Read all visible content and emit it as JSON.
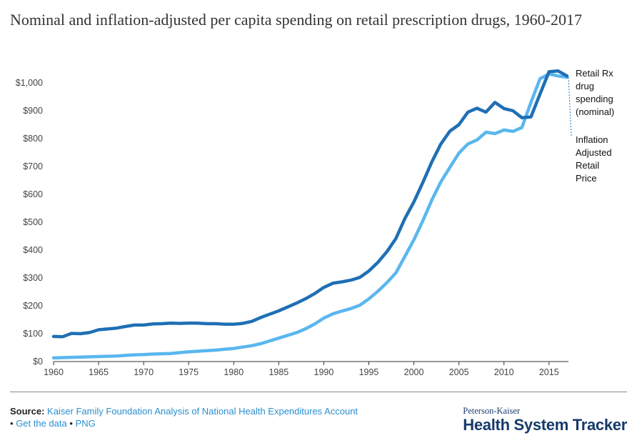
{
  "chart_data": {
    "type": "line",
    "title": "Nominal and inflation-adjusted per capita spending on retail prescription drugs, 1960-2017",
    "xlabel": "",
    "ylabel": "",
    "xlim": [
      1960,
      2017
    ],
    "ylim": [
      0,
      1100
    ],
    "x_ticks": [
      1960,
      1965,
      1970,
      1975,
      1980,
      1985,
      1990,
      1995,
      2000,
      2005,
      2010,
      2015
    ],
    "x_tick_labels": [
      "1960",
      "1965",
      "1970",
      "1975",
      "1980",
      "1985",
      "1990",
      "1995",
      "2000",
      "2005",
      "2010",
      "2015"
    ],
    "y_ticks": [
      0,
      100,
      200,
      300,
      400,
      500,
      600,
      700,
      800,
      900,
      1000
    ],
    "y_tick_labels": [
      "$0",
      "$100",
      "$200",
      "$300",
      "$400",
      "$500",
      "$600",
      "$700",
      "$800",
      "$900",
      "$1,000"
    ],
    "grid": false,
    "x": [
      1960,
      1961,
      1962,
      1963,
      1964,
      1965,
      1966,
      1967,
      1968,
      1969,
      1970,
      1971,
      1972,
      1973,
      1974,
      1975,
      1976,
      1977,
      1978,
      1979,
      1980,
      1981,
      1982,
      1983,
      1984,
      1985,
      1986,
      1987,
      1988,
      1989,
      1990,
      1991,
      1992,
      1993,
      1994,
      1995,
      1996,
      1997,
      1998,
      1999,
      2000,
      2001,
      2002,
      2003,
      2004,
      2005,
      2006,
      2007,
      2008,
      2009,
      2010,
      2011,
      2012,
      2013,
      2014,
      2015,
      2016,
      2017
    ],
    "series": [
      {
        "name": "Retail Rx drug spending (nominal)",
        "label_lines": [
          "Retail Rx",
          "drug",
          "spending",
          "(nominal)"
        ],
        "color": "#1f6fb5",
        "values": [
          90,
          89,
          101,
          100,
          104,
          114,
          117,
          120,
          126,
          131,
          131,
          135,
          136,
          138,
          137,
          138,
          138,
          136,
          136,
          134,
          134,
          137,
          144,
          158,
          170,
          182,
          196,
          210,
          226,
          244,
          266,
          281,
          286,
          292,
          302,
          325,
          356,
          394,
          441,
          513,
          573,
          643,
          717,
          781,
          827,
          850,
          895,
          909,
          895,
          930,
          908,
          900,
          875,
          878,
          960,
          1040,
          1043,
          1025
        ],
        "end_value_label": null
      },
      {
        "name": "Inflation Adjusted Retail Price",
        "label_lines": [
          "Inflation",
          "Adjusted",
          "Retail",
          "Price"
        ],
        "color": "#5ab7ee",
        "values": [
          13,
          14,
          15,
          16,
          17,
          18,
          19,
          20,
          22,
          24,
          25,
          27,
          28,
          29,
          32,
          35,
          37,
          39,
          41,
          44,
          47,
          52,
          57,
          64,
          74,
          84,
          94,
          104,
          118,
          135,
          156,
          171,
          181,
          190,
          202,
          225,
          252,
          283,
          318,
          377,
          437,
          506,
          580,
          645,
          697,
          748,
          781,
          795,
          823,
          818,
          831,
          826,
          840,
          930,
          1015,
          1032,
          1025,
          1020
        ],
        "end_value_label": null
      }
    ]
  },
  "footer": {
    "source_label": "Source:",
    "source_link": "Kaiser Family Foundation Analysis of National Health Expenditures Account",
    "bullet": "•",
    "get_data": "Get the data",
    "png": "PNG"
  },
  "brand": {
    "sub": "Peterson-Kaiser",
    "main": "Health System Tracker"
  },
  "colors": {
    "nominal": "#1f6fb5",
    "adjusted": "#5ab7ee",
    "link": "#2a8fcf",
    "brand": "#163a6b"
  }
}
